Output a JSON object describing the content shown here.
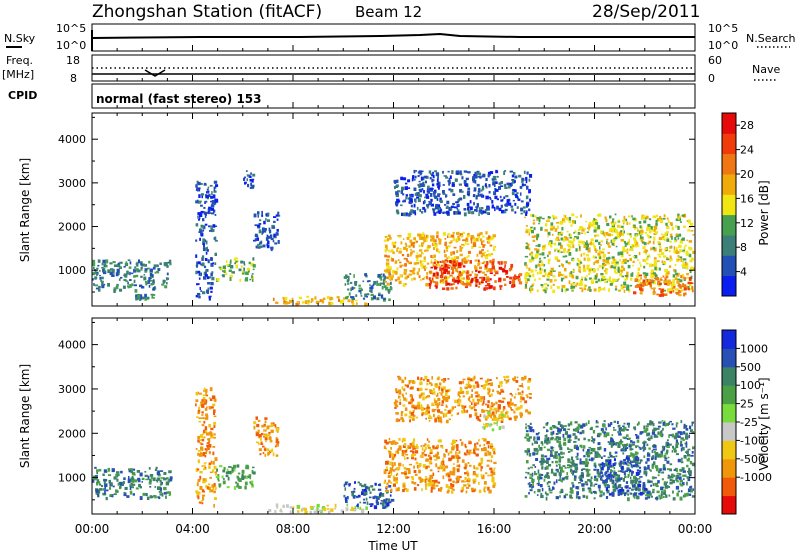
{
  "header": {
    "station": "Zhongshan Station (fitACF)",
    "beam": "Beam 12",
    "date": "28/Sep/2011"
  },
  "strip_panels": {
    "nsky": {
      "label": "N.Sky",
      "ticks": [
        "10^5",
        "10^0"
      ]
    },
    "nsearch": {
      "label": "N.Search",
      "ticks": [
        "10^5",
        "10^0"
      ]
    },
    "freq": {
      "label": "Freq.",
      "unit": "[MHz]",
      "ticks": [
        "18",
        "8"
      ]
    },
    "nave": {
      "label": "Nave",
      "ticks": [
        "60",
        "0"
      ]
    },
    "cpid": {
      "label": "CPID",
      "value": "normal (fast stereo) 153"
    }
  },
  "colors": {
    "power": [
      "#0a1ef0",
      "#2250b4",
      "#3c7f78",
      "#46a050",
      "#f0e614",
      "#f0aa0a",
      "#f07814",
      "#f03c0a",
      "#e60a0a"
    ],
    "velocity": [
      "#e60a0a",
      "#f05a0a",
      "#f0960a",
      "#f0c814",
      "#c8c8c8",
      "#78dc3c",
      "#4ba046",
      "#3c8264",
      "#2850b4",
      "#1428dc"
    ]
  },
  "chart_data": [
    {
      "type": "heatmap",
      "name": "power",
      "x": {
        "label": "Time UT",
        "ticks": [
          "00:00",
          "04:00",
          "08:00",
          "12:00",
          "16:00",
          "20:00",
          "00:00"
        ],
        "range_hours": [
          0,
          24
        ]
      },
      "y": {
        "label": "Slant Range [km]",
        "ticks": [
          "1000",
          "2000",
          "3000",
          "4000"
        ],
        "range": [
          180,
          4600
        ]
      },
      "colorbar": {
        "label": "Power [dB]",
        "ticks": [
          "4",
          "8",
          "12",
          "16",
          "20",
          "24",
          "28"
        ],
        "range": [
          0,
          30
        ]
      },
      "regions": [
        {
          "t": [
            0.0,
            3.1
          ],
          "r": [
            560,
            1250
          ],
          "level": 2
        },
        {
          "t": [
            1.7,
            2.6
          ],
          "r": [
            380,
            460
          ],
          "level": 2
        },
        {
          "t": [
            4.1,
            4.9
          ],
          "r": [
            380,
            3050
          ],
          "level": 1
        },
        {
          "t": [
            4.9,
            6.4
          ],
          "r": [
            800,
            1300
          ],
          "level": 3
        },
        {
          "t": [
            6.4,
            7.4
          ],
          "r": [
            1500,
            2400
          ],
          "level": 1
        },
        {
          "t": [
            6.0,
            6.4
          ],
          "r": [
            2900,
            3300
          ],
          "level": 1
        },
        {
          "t": [
            7.0,
            10.9
          ],
          "r": [
            250,
            420
          ],
          "level": 5
        },
        {
          "t": [
            10.0,
            11.9
          ],
          "r": [
            350,
            950
          ],
          "level": 2
        },
        {
          "t": [
            11.6,
            16.0
          ],
          "r": [
            700,
            1900
          ],
          "level": 5
        },
        {
          "t": [
            13.4,
            17.0
          ],
          "r": [
            600,
            1250
          ],
          "level": 7
        },
        {
          "t": [
            12.0,
            17.4
          ],
          "r": [
            2300,
            3300
          ],
          "level": 1
        },
        {
          "t": [
            17.2,
            23.9
          ],
          "r": [
            550,
            2300
          ],
          "level": 4
        },
        {
          "t": [
            21.5,
            23.9
          ],
          "r": [
            450,
            900
          ],
          "level": 6
        }
      ]
    },
    {
      "type": "heatmap",
      "name": "velocity",
      "x": {
        "label": "Time UT",
        "ticks": [
          "00:00",
          "04:00",
          "08:00",
          "12:00",
          "16:00",
          "20:00",
          "00:00"
        ],
        "range_hours": [
          0,
          24
        ]
      },
      "y": {
        "label": "Slant Range [km]",
        "ticks": [
          "1000",
          "2000",
          "3000",
          "4000"
        ],
        "range": [
          180,
          4600
        ]
      },
      "colorbar": {
        "label": "Velocity [m s⁻¹]",
        "ticks": [
          "1000",
          "500",
          "100",
          "25",
          "-25",
          "-100",
          "-500",
          "-1000"
        ]
      },
      "regions": [
        {
          "t": [
            0.0,
            3.1
          ],
          "r": [
            560,
            1250
          ],
          "level": 7
        },
        {
          "t": [
            4.1,
            4.9
          ],
          "r": [
            380,
            3050
          ],
          "level": 2
        },
        {
          "t": [
            4.9,
            6.4
          ],
          "r": [
            800,
            1300
          ],
          "level": 6
        },
        {
          "t": [
            6.4,
            7.4
          ],
          "r": [
            1500,
            2400
          ],
          "level": 2
        },
        {
          "t": [
            7.0,
            10.9
          ],
          "r": [
            250,
            420
          ],
          "level": 4
        },
        {
          "t": [
            10.0,
            11.9
          ],
          "r": [
            350,
            950
          ],
          "level": 8
        },
        {
          "t": [
            11.6,
            16.0
          ],
          "r": [
            700,
            1900
          ],
          "level": 2
        },
        {
          "t": [
            12.0,
            17.4
          ],
          "r": [
            2300,
            3300
          ],
          "level": 2
        },
        {
          "t": [
            15.5,
            16.3
          ],
          "r": [
            2100,
            2500
          ],
          "level": 4
        },
        {
          "t": [
            17.2,
            23.9
          ],
          "r": [
            550,
            2300
          ],
          "level": 7
        },
        {
          "t": [
            20.2,
            22.0
          ],
          "r": [
            650,
            1500
          ],
          "level": 8
        }
      ]
    }
  ]
}
